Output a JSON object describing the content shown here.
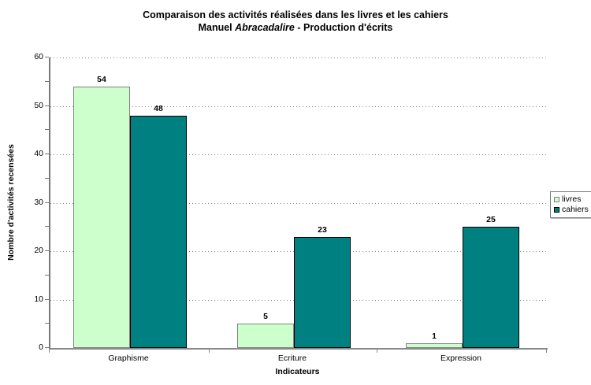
{
  "chart_data": {
    "type": "bar",
    "title_line1": "Comparaison des activités réalisées dans les livres et les cahiers",
    "title_line2": {
      "prefix": "Manuel ",
      "italic": "Abracadalire",
      "suffix": " - Production d'écrits"
    },
    "categories": [
      "Graphisme",
      "Ecriture",
      "Expression"
    ],
    "series": [
      {
        "name": "livres",
        "values": [
          54,
          5,
          1
        ],
        "fill": "#CCFFCC",
        "border": "#808080"
      },
      {
        "name": "cahiers",
        "values": [
          48,
          23,
          25
        ],
        "fill": "#008080",
        "border": "#000000"
      }
    ],
    "xlabel": "Indicateurs",
    "ylabel": "Nombre d'activités recensées",
    "ylim": [
      0,
      60
    ],
    "ytick_step": 10,
    "ytick_labels": [
      "0",
      "10",
      "20",
      "30",
      "40",
      "50",
      "60"
    ],
    "grid": "horizontal-dotted",
    "legend_position": "right-middle",
    "legend_items": [
      "livres",
      "cahiers"
    ]
  },
  "colors": {
    "background": "#ffffff",
    "grid": "#858585",
    "axis": "#808080",
    "text": "#000000",
    "livres_fill": "#CCFFCC",
    "cahiers_fill": "#008080"
  }
}
